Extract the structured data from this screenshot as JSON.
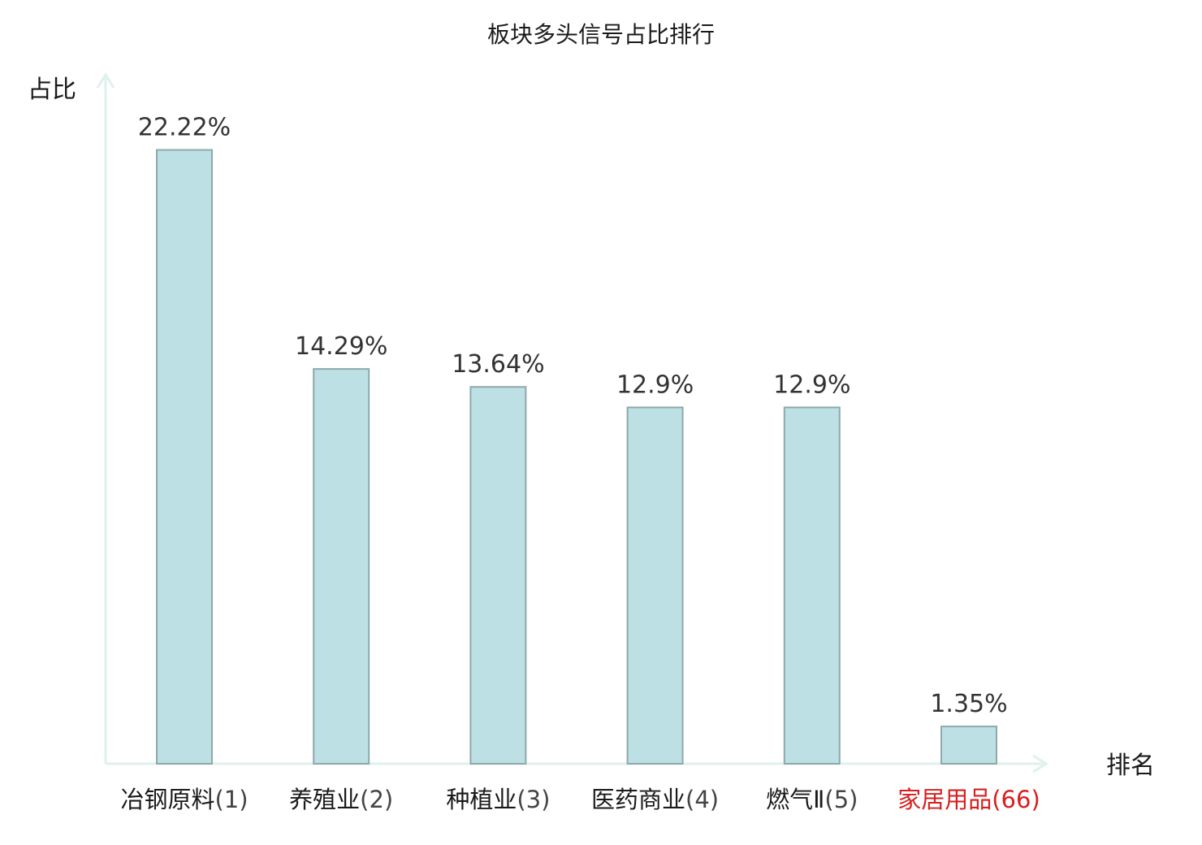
{
  "chart_data": {
    "type": "bar",
    "title": "板块多头信号占比排行",
    "ylabel": "占比",
    "xlabel": "排名",
    "categories": [
      {
        "name": "冶钢原料",
        "rank": "(1)"
      },
      {
        "name": "养殖业",
        "rank": "(2)"
      },
      {
        "name": "种植业",
        "rank": "(3)"
      },
      {
        "name": "医药商业",
        "rank": "(4)"
      },
      {
        "name": "燃气Ⅱ",
        "rank": "(5)"
      },
      {
        "name": "家居用品",
        "rank": "(66)"
      }
    ],
    "values": [
      22.22,
      14.29,
      13.64,
      12.9,
      12.9,
      1.35
    ],
    "value_labels": [
      "22.22%",
      "14.29%",
      "13.64%",
      "12.9%",
      "12.9%",
      "1.35%"
    ],
    "highlight_index": 5,
    "ylim": [
      0,
      25
    ],
    "grid": false,
    "colors": {
      "bar_fill": "#bce0e3",
      "bar_stroke": "#8fa9ab",
      "axis": "#dff0ee",
      "category_text": "#1a1a1a",
      "rank_text": "#444444",
      "highlight_text": "#d81e1e"
    }
  }
}
